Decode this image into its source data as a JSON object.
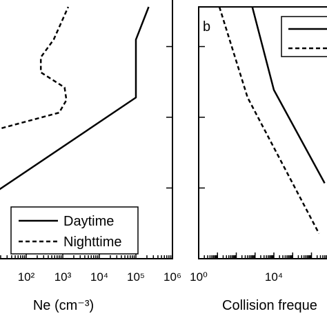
{
  "chart_data": [
    {
      "type": "line",
      "xlabel": "Ne (cm⁻³)",
      "xscale": "log",
      "x_ticks": [
        {
          "label": "10²",
          "exp": 2
        },
        {
          "label": "10³",
          "exp": 3
        },
        {
          "label": "10⁴",
          "exp": 4
        },
        {
          "label": "10⁵",
          "exp": 5
        },
        {
          "label": "10⁶",
          "exp": 6
        }
      ],
      "legend": {
        "position": "bottom-right",
        "entries": [
          "Daytime",
          "Nighttime"
        ]
      },
      "series": [
        {
          "name": "Daytime",
          "style": "solid",
          "points": [
            [
              0.6,
              0.21
            ],
            [
              5.0,
              0.64
            ],
            [
              5.0,
              0.87
            ],
            [
              5.35,
              1.0
            ]
          ]
        },
        {
          "name": "Nighttime",
          "style": "dashed",
          "points": [
            [
              0.6,
              0.49
            ],
            [
              2.9,
              0.58
            ],
            [
              3.1,
              0.63
            ],
            [
              3.05,
              0.68
            ],
            [
              2.4,
              0.74
            ],
            [
              2.4,
              0.8
            ],
            [
              2.75,
              0.87
            ],
            [
              3.15,
              1.0
            ]
          ]
        }
      ]
    },
    {
      "type": "line",
      "panel_label": "b",
      "xlabel": "Collision freque",
      "xscale": "log",
      "x_ticks": [
        {
          "label": "10⁰",
          "exp": 0
        },
        {
          "label": "10⁴",
          "exp": 4
        }
      ],
      "legend": {
        "position": "top-right",
        "entries": [
          "",
          ""
        ]
      },
      "series": [
        {
          "style": "solid",
          "points": [
            [
              2.85,
              1.0
            ],
            [
              4.0,
              0.67
            ],
            [
              6.7,
              0.3
            ]
          ]
        },
        {
          "style": "dashed",
          "points": [
            [
              1.1,
              1.0
            ],
            [
              2.6,
              0.64
            ],
            [
              6.4,
              0.1
            ]
          ]
        }
      ]
    }
  ]
}
